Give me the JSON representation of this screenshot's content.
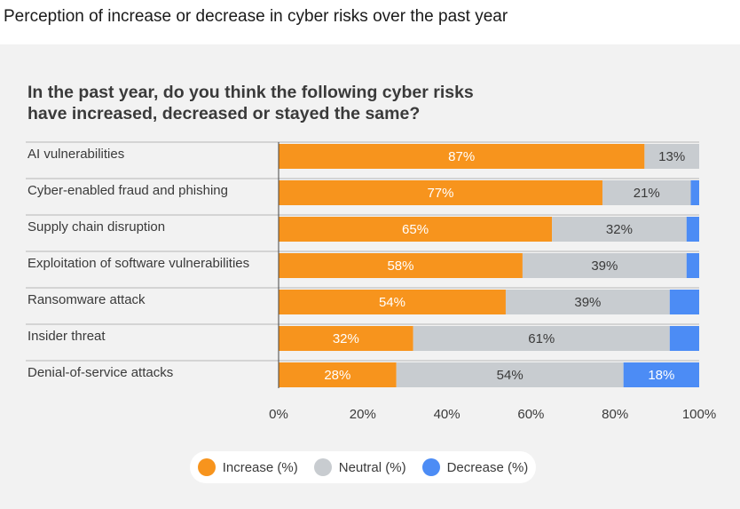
{
  "page_title": "Perception of increase or decrease in cyber risks over the past year",
  "colors": {
    "increase": "#f7941d",
    "neutral": "#c8ccd0",
    "decrease": "#4c8cf5",
    "gridline": "#b5b5b5"
  },
  "chart_data": {
    "type": "bar",
    "orientation": "horizontal",
    "stacked": true,
    "title": "In the past year, do you think the following cyber risks have increased, decreased or stayed the same?",
    "categories": [
      "AI vulnerabilities",
      "Cyber-enabled fraud and phishing",
      "Supply chain disruption",
      "Exploitation of software vulnerabilities",
      "Ransomware attack",
      "Insider threat",
      "Denial-of-service attacks"
    ],
    "series": [
      {
        "name": "Increase (%)",
        "values": [
          87,
          77,
          65,
          58,
          54,
          32,
          28
        ],
        "labels": [
          "87%",
          "77%",
          "65%",
          "58%",
          "54%",
          "32%",
          "28%"
        ]
      },
      {
        "name": "Neutral (%)",
        "values": [
          13,
          21,
          32,
          39,
          39,
          61,
          54
        ],
        "labels": [
          "13%",
          "21%",
          "32%",
          "39%",
          "39%",
          "61%",
          "54%"
        ]
      },
      {
        "name": "Decrease (%)",
        "values": [
          1,
          2,
          4,
          3,
          7,
          8,
          18
        ],
        "labels": [
          "",
          "",
          "",
          "",
          "",
          "",
          "18%"
        ]
      }
    ],
    "xlim": [
      0,
      100
    ],
    "xticks": [
      "0%",
      "20%",
      "40%",
      "60%",
      "80%",
      "100%"
    ],
    "legend_position": "bottom"
  }
}
